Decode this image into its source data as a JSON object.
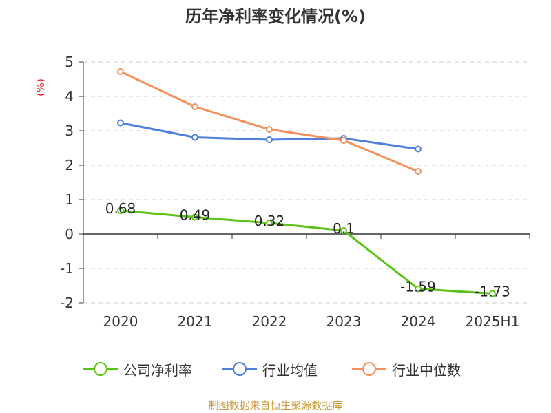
{
  "chart_data": {
    "type": "line",
    "title": "历年净利率变化情况(%)",
    "ylabel": "(%)",
    "xlabel": "",
    "categories": [
      "2020",
      "2021",
      "2022",
      "2023",
      "2024",
      "2025H1"
    ],
    "ylim": [
      -2,
      5
    ],
    "yticks": [
      5,
      4,
      3,
      2,
      1,
      0,
      -1,
      -2
    ],
    "grid": true,
    "legend_position": "bottom",
    "series": [
      {
        "name": "公司净利率",
        "color": "#5cc316",
        "values": [
          0.68,
          0.49,
          0.32,
          0.1,
          -1.59,
          -1.73
        ],
        "labels": [
          "0.68",
          "0.49",
          "0.32",
          "0.1",
          "-1.59",
          "-1.73"
        ]
      },
      {
        "name": "行业均值",
        "color": "#4e7fdb",
        "values": [
          3.23,
          2.81,
          2.74,
          2.78,
          2.47,
          null
        ]
      },
      {
        "name": "行业中位数",
        "color": "#f58f5c",
        "values": [
          4.72,
          3.7,
          3.04,
          2.72,
          1.82,
          null
        ]
      }
    ]
  },
  "source_note": "制图数据来自恒生聚源数据库"
}
